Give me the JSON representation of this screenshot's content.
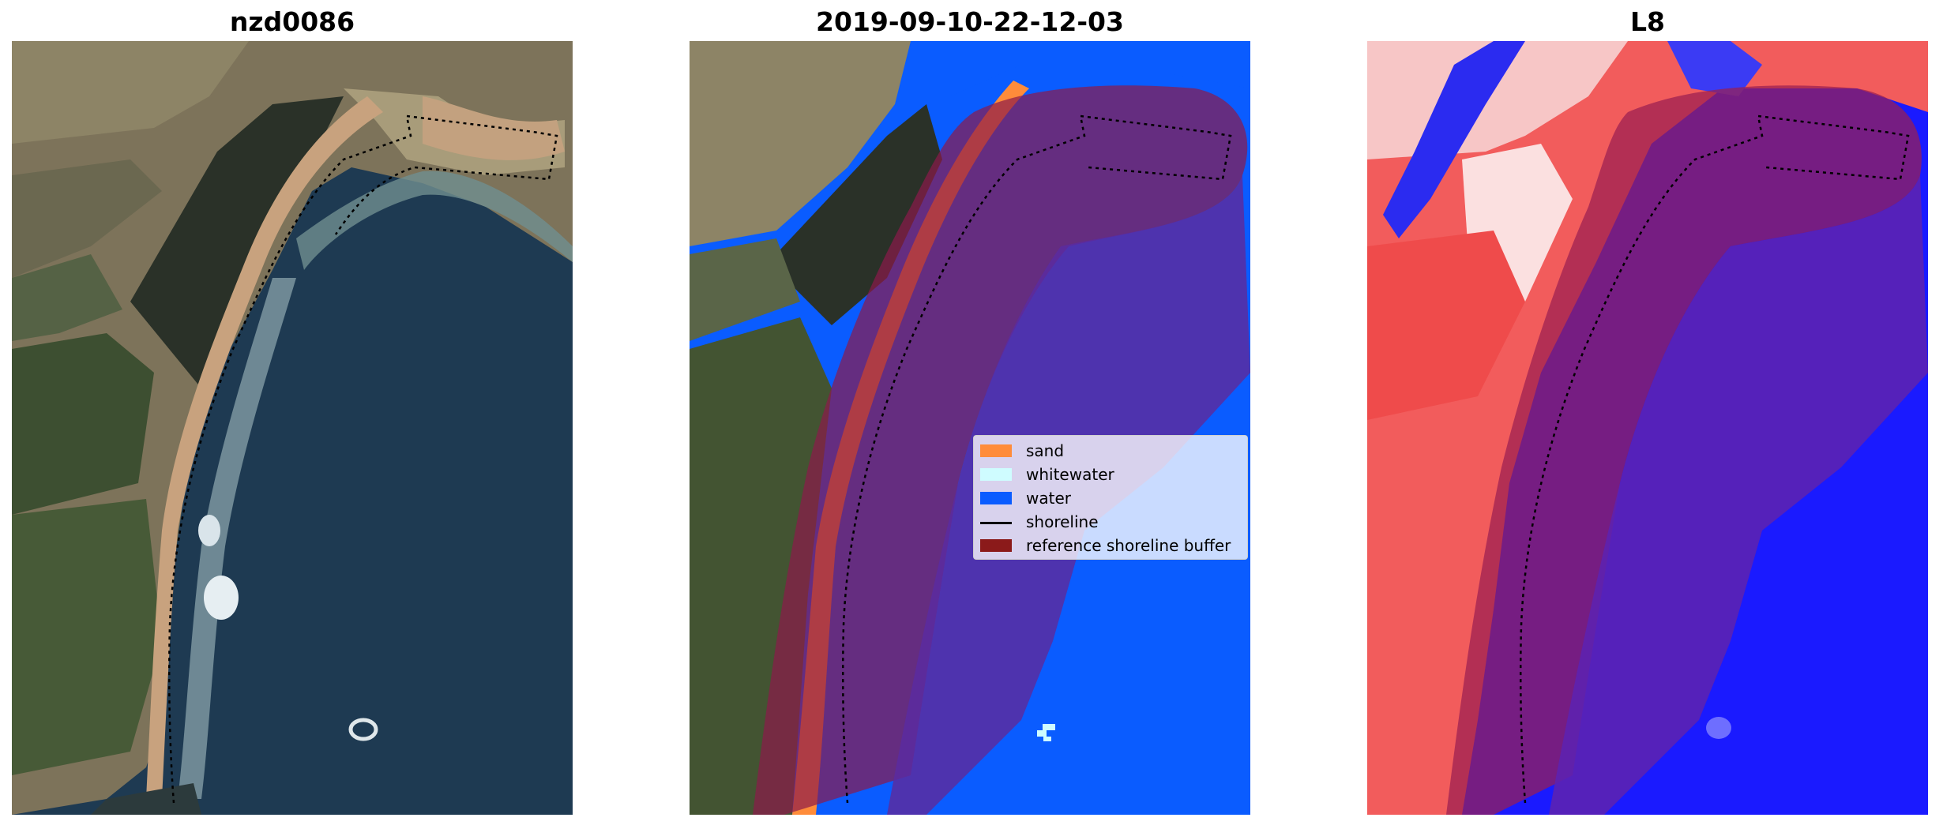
{
  "panels": [
    {
      "title": "nzd0086"
    },
    {
      "title": "2019-09-10-22-12-03"
    },
    {
      "title": "L8"
    }
  ],
  "legend": {
    "items": [
      {
        "label": "sand",
        "color": "#ff8c3a",
        "kind": "patch"
      },
      {
        "label": "whitewater",
        "color": "#cffcff",
        "kind": "patch"
      },
      {
        "label": "water",
        "color": "#0a5cff",
        "kind": "patch"
      },
      {
        "label": "shoreline",
        "color": "#000000",
        "kind": "line"
      },
      {
        "label": "reference shoreline buffer",
        "color": "#8b1a1a",
        "kind": "patch"
      }
    ]
  }
}
